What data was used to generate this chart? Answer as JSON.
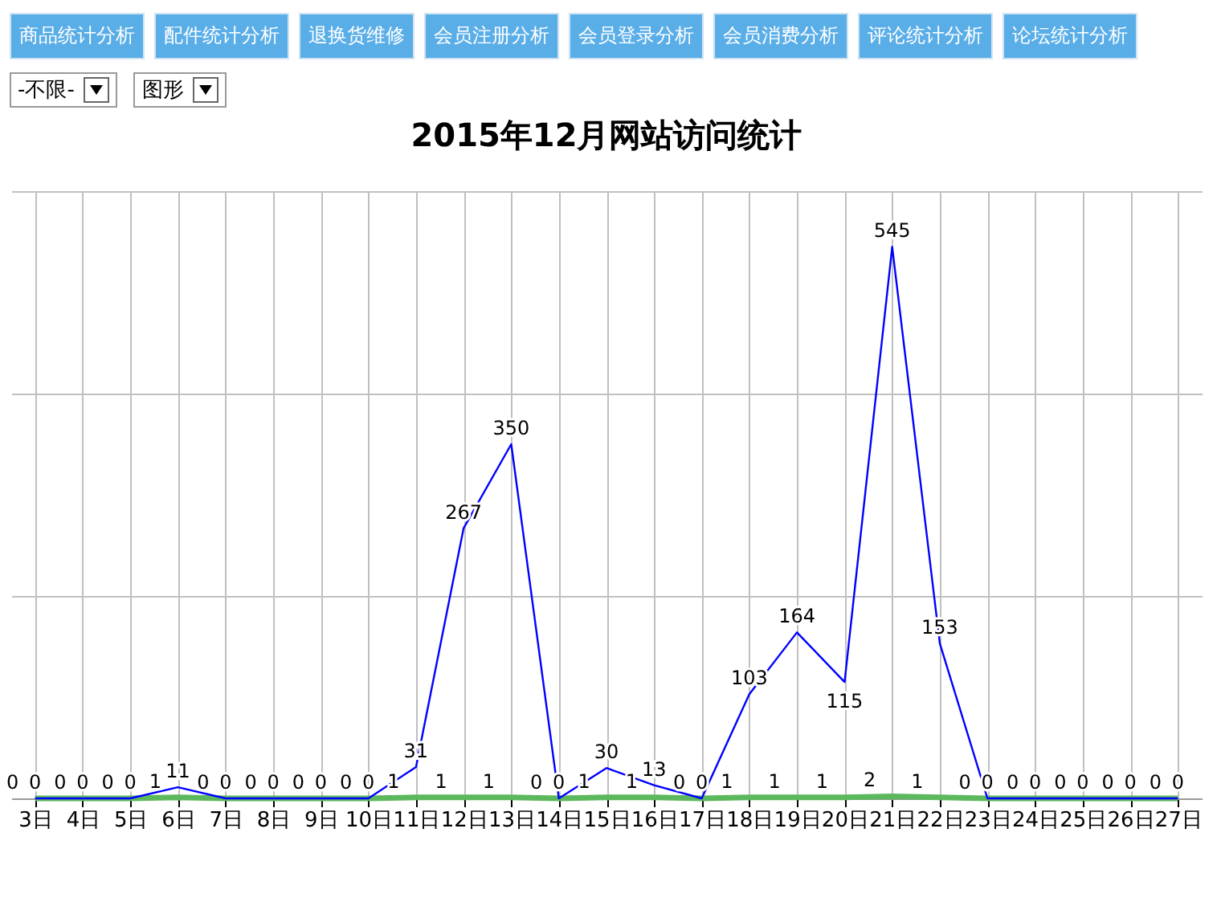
{
  "chart_data": {
    "type": "line",
    "title": "2015年12月网站访问统计",
    "annotations": [
      "商品统计分析",
      "配件统计分析",
      "退换货维修",
      "会员注册分析",
      "会员登录分析",
      "会员消费分析",
      "评论统计分析",
      "论坛统计分析",
      "-不限-",
      "图形"
    ],
    "categories": [
      "3日",
      "4日",
      "5日",
      "6日",
      "7日",
      "8日",
      "9日",
      "10日",
      "11日",
      "12日",
      "13日",
      "14日",
      "15日",
      "16日",
      "17日",
      "18日",
      "19日",
      "20日",
      "21日",
      "22日",
      "23日",
      "24日",
      "25日",
      "26日",
      "27日"
    ],
    "series": [
      {
        "color": "#0000ff",
        "values": [
          0,
          0,
          0,
          11,
          0,
          0,
          0,
          0,
          31,
          267,
          350,
          0,
          30,
          13,
          0,
          103,
          164,
          115,
          545,
          153,
          0,
          0,
          0,
          0,
          0
        ]
      },
      {
        "color": "#5cb85c",
        "values": [
          0,
          0,
          0,
          1,
          0,
          0,
          0,
          0,
          1,
          1,
          1,
          0,
          1,
          1,
          0,
          1,
          1,
          1,
          2,
          1,
          0,
          0,
          0,
          0,
          0
        ]
      }
    ],
    "ylim": [
      0,
      600
    ],
    "yticks": [
      {
        "value": 0,
        "label": null
      },
      {
        "value": 200,
        "label": null
      },
      {
        "value": 400,
        "label": null
      },
      {
        "value": 600,
        "label": null
      }
    ],
    "tick_labels": "x",
    "grid": true,
    "data_labels": true,
    "marker": "none",
    "line_style": "solid"
  }
}
